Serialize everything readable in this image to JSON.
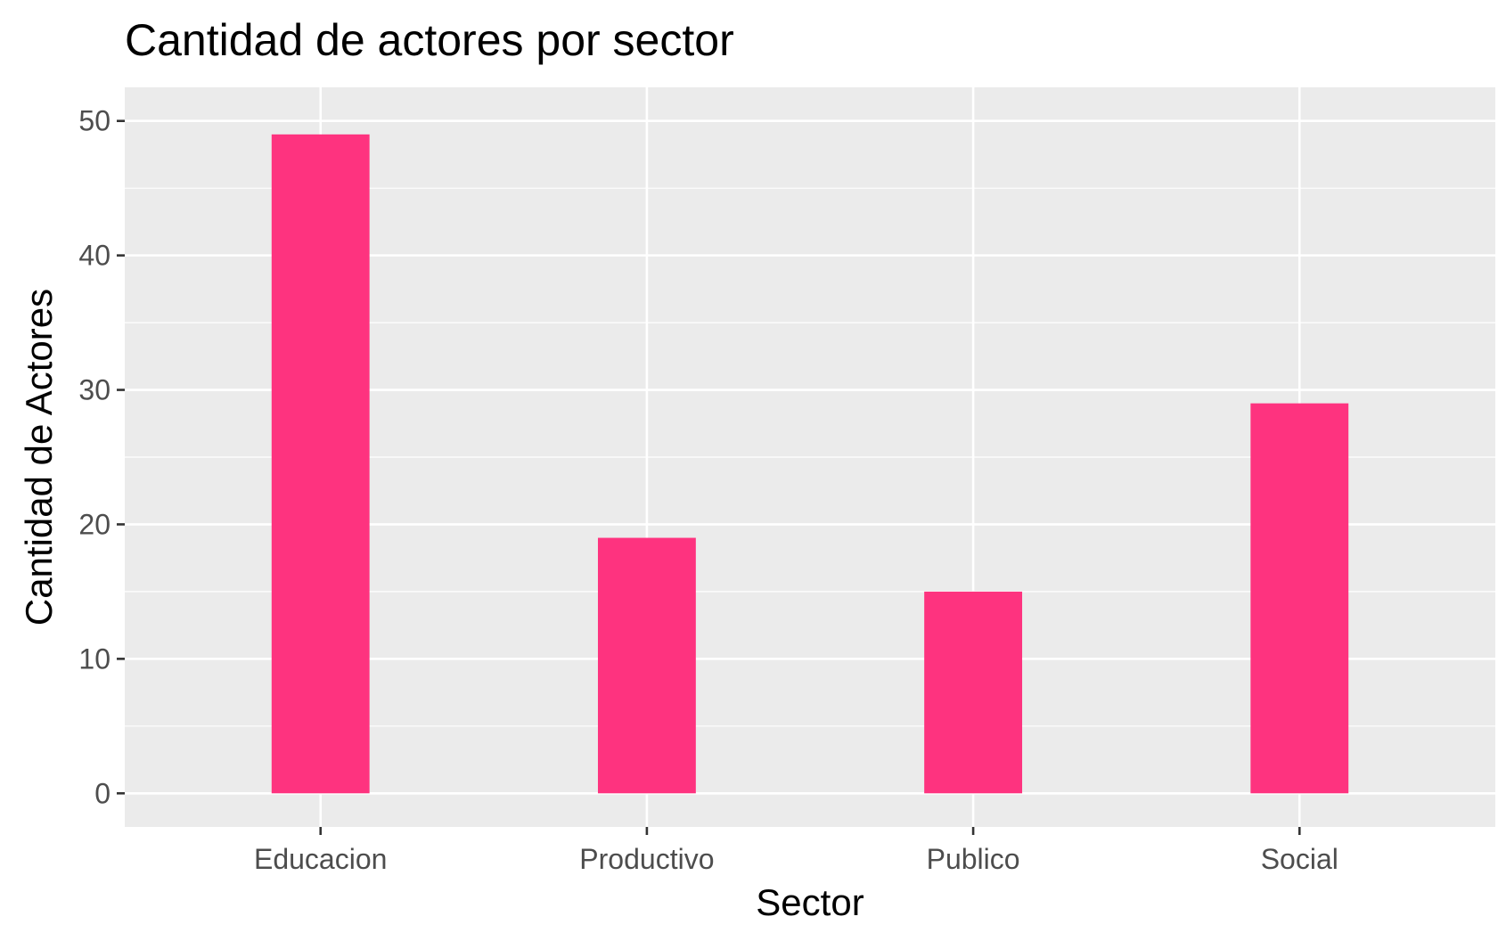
{
  "chart_data": {
    "type": "bar",
    "title": "Cantidad de actores por sector",
    "xlabel": "Sector",
    "ylabel": "Cantidad de Actores",
    "categories": [
      "Educacion",
      "Productivo",
      "Publico",
      "Social"
    ],
    "values": [
      49,
      19,
      15,
      29
    ],
    "ylim": [
      0,
      50
    ],
    "yticks": [
      0,
      10,
      20,
      30,
      40,
      50
    ],
    "grid": true,
    "legend": "none",
    "colors": {
      "bar": "#fe337f",
      "panel": "#ebebeb",
      "grid": "#ffffff",
      "tick": "#333333"
    }
  }
}
